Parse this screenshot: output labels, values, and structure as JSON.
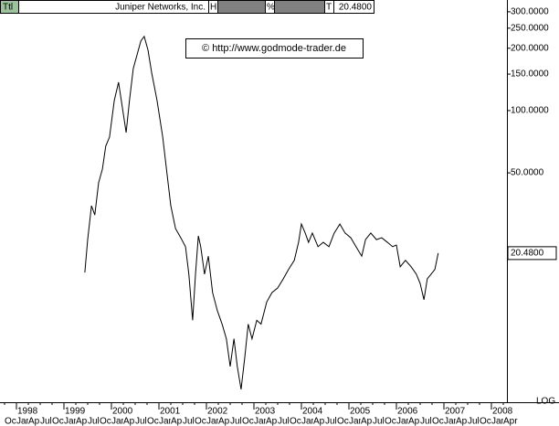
{
  "header": {
    "ttl": "Ttl",
    "name": "Juniper Networks, Inc.",
    "h": "H",
    "pct": "%",
    "t": "T",
    "last": "20.4800"
  },
  "copyright": "© http://www.godmode-trader.de",
  "chart_data": {
    "type": "line",
    "log_scale": true,
    "color": "#000000",
    "xlim": [
      1997.654,
      2008.327
    ],
    "ylim": [
      3.9,
      342
    ],
    "xticks": [
      {
        "value": 1998,
        "label": "1998"
      },
      {
        "value": 1999,
        "label": "1999"
      },
      {
        "value": 2000,
        "label": "2000"
      },
      {
        "value": 2001,
        "label": "2001"
      },
      {
        "value": 2002,
        "label": "2002"
      },
      {
        "value": 2003,
        "label": "2003"
      },
      {
        "value": 2004,
        "label": "2004"
      },
      {
        "value": 2005,
        "label": "2005"
      },
      {
        "value": 2006,
        "label": "2006"
      },
      {
        "value": 2007,
        "label": "2007"
      },
      {
        "value": 2008,
        "label": "2008"
      }
    ],
    "month_ticks": [
      {
        "value": 1997.75,
        "label": "Oct"
      },
      {
        "value": 1998,
        "label": "Jan"
      },
      {
        "value": 1998.25,
        "label": "Apr"
      },
      {
        "value": 1998.5,
        "label": "Jul"
      },
      {
        "value": 1998.75,
        "label": "Oct"
      },
      {
        "value": 1999,
        "label": "Jan"
      },
      {
        "value": 1999.25,
        "label": "Apr"
      },
      {
        "value": 1999.5,
        "label": "Jul"
      },
      {
        "value": 1999.75,
        "label": "Oct"
      },
      {
        "value": 2000,
        "label": "Jan"
      },
      {
        "value": 2000.25,
        "label": "Apr"
      },
      {
        "value": 2000.5,
        "label": "Jul"
      },
      {
        "value": 2000.75,
        "label": "Oct"
      },
      {
        "value": 2001,
        "label": "Jan"
      },
      {
        "value": 2001.25,
        "label": "Apr"
      },
      {
        "value": 2001.5,
        "label": "Jul"
      },
      {
        "value": 2001.75,
        "label": "Oct"
      },
      {
        "value": 2002,
        "label": "Jan"
      },
      {
        "value": 2002.25,
        "label": "Apr"
      },
      {
        "value": 2002.5,
        "label": "Jul"
      },
      {
        "value": 2002.75,
        "label": "Oct"
      },
      {
        "value": 2003,
        "label": "Jan"
      },
      {
        "value": 2003.25,
        "label": "Apr"
      },
      {
        "value": 2003.5,
        "label": "Jul"
      },
      {
        "value": 2003.75,
        "label": "Oct"
      },
      {
        "value": 2004,
        "label": "Jan"
      },
      {
        "value": 2004.25,
        "label": "Apr"
      },
      {
        "value": 2004.5,
        "label": "Jul"
      },
      {
        "value": 2004.75,
        "label": "Oct"
      },
      {
        "value": 2005,
        "label": "Jan"
      },
      {
        "value": 2005.25,
        "label": "Apr"
      },
      {
        "value": 2005.5,
        "label": "Jul"
      },
      {
        "value": 2005.75,
        "label": "Oct"
      },
      {
        "value": 2006,
        "label": "Jan"
      },
      {
        "value": 2006.25,
        "label": "Apr"
      },
      {
        "value": 2006.5,
        "label": "Jul"
      },
      {
        "value": 2006.75,
        "label": "Oct"
      },
      {
        "value": 2007,
        "label": "Jan"
      },
      {
        "value": 2007.25,
        "label": "Apr"
      },
      {
        "value": 2007.5,
        "label": "Jul"
      },
      {
        "value": 2007.75,
        "label": "Oct"
      },
      {
        "value": 2008,
        "label": "Jan"
      },
      {
        "value": 2008.25,
        "label": "Apr"
      }
    ],
    "yticks": [
      {
        "value": 300,
        "label": "300.0000"
      },
      {
        "value": 250,
        "label": "250.0000"
      },
      {
        "value": 200,
        "label": "200.0000"
      },
      {
        "value": 150,
        "label": "150.0000"
      },
      {
        "value": 100,
        "label": "100.0000"
      },
      {
        "value": 50,
        "label": "50.0000"
      }
    ],
    "scale_label": "LOG",
    "last_value": {
      "value": 20.48,
      "label": "20.4800"
    },
    "x": [
      1999.44,
      1999.5,
      1999.58,
      1999.65,
      1999.73,
      1999.81,
      1999.88,
      1999.96,
      2000.06,
      2000.15,
      2000.31,
      2000.38,
      2000.46,
      2000.54,
      2000.62,
      2000.69,
      2000.77,
      2000.85,
      2000.96,
      2001.08,
      2001.17,
      2001.25,
      2001.35,
      2001.46,
      2001.56,
      2001.63,
      2001.71,
      2001.77,
      2001.83,
      2001.88,
      2001.96,
      2002.04,
      2002.13,
      2002.23,
      2002.33,
      2002.42,
      2002.5,
      2002.58,
      2002.65,
      2002.73,
      2002.81,
      2002.88,
      2002.96,
      2003.06,
      2003.15,
      2003.27,
      2003.38,
      2003.5,
      2003.62,
      2003.73,
      2003.85,
      2003.94,
      2004.0,
      2004.08,
      2004.15,
      2004.23,
      2004.35,
      2004.46,
      2004.58,
      2004.69,
      2004.81,
      2004.92,
      2005.04,
      2005.15,
      2005.27,
      2005.35,
      2005.46,
      2005.58,
      2005.69,
      2005.81,
      2005.92,
      2006.0,
      2006.08,
      2006.19,
      2006.31,
      2006.42,
      2006.5,
      2006.58,
      2006.65,
      2006.73,
      2006.81,
      2006.88
    ],
    "values": [
      16.5,
      23.8,
      34.7,
      31.3,
      44.8,
      52.1,
      67.3,
      74.5,
      111.8,
      137,
      78.3,
      111.8,
      159.6,
      186,
      217,
      228,
      196,
      151,
      112,
      74.5,
      49.6,
      34.7,
      26.9,
      24.3,
      22,
      16.2,
      9.7,
      16.2,
      24.8,
      22,
      16.2,
      19.8,
      13.2,
      10.8,
      9.3,
      7.9,
      5.8,
      7.9,
      5.8,
      4.5,
      6.5,
      9.3,
      7.9,
      9.7,
      9.3,
      11.9,
      13.2,
      13.9,
      15.4,
      17.1,
      18.9,
      23.1,
      28.3,
      25.6,
      23.1,
      25.6,
      22,
      23.1,
      22,
      25.6,
      28.3,
      25.6,
      24.3,
      22,
      19.8,
      23.8,
      25.6,
      23.8,
      24.3,
      23.1,
      22,
      22.4,
      17.6,
      18.9,
      17.6,
      16.2,
      14.6,
      12.2,
      15.4,
      16.2,
      17.1,
      20.48
    ]
  }
}
